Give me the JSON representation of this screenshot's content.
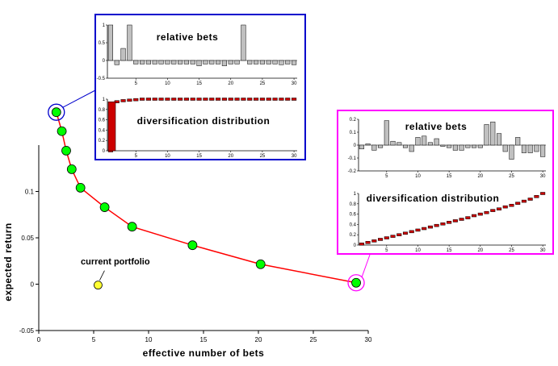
{
  "chart_data": [
    {
      "id": "main",
      "type": "line",
      "xlabel": "effective number of bets",
      "ylabel": "expected return",
      "xlim": [
        0,
        30
      ],
      "ylim": [
        -0.05,
        0.15
      ],
      "x_ticks": [
        0,
        5,
        10,
        15,
        20,
        25,
        30
      ],
      "y_ticks": [
        -0.05,
        0,
        0.05,
        0.1
      ],
      "x_tick_labels": [
        "0",
        "5",
        "10",
        "15",
        "20",
        "25",
        "30"
      ],
      "y_tick_labels": [
        "-0.05",
        "0",
        "0.05",
        "0.1"
      ],
      "frontier": {
        "x": [
          1.6,
          2.1,
          2.5,
          3.0,
          3.8,
          6.0,
          8.5,
          14.0,
          20.2,
          28.9
        ],
        "y": [
          0.1855,
          0.165,
          0.144,
          0.124,
          0.104,
          0.083,
          0.062,
          0.042,
          0.0215,
          0.0015
        ],
        "color": "#ff0000",
        "marker_color": "#00ff00"
      },
      "current_portfolio": {
        "x": 5.4,
        "y": -0.001,
        "color": "#ffff33",
        "label": "current portfolio"
      },
      "highlight_colors": [
        "#0000cc",
        "#ff00ff"
      ]
    },
    {
      "id": "inset-left-relative",
      "type": "bar",
      "title": "relative bets",
      "xlim": [
        0,
        30
      ],
      "ylim": [
        -0.5,
        1
      ],
      "x_ticks": [
        5,
        10,
        15,
        20,
        25,
        30
      ],
      "y_ticks": [
        1,
        0.5,
        0,
        -0.5
      ],
      "y_tick_labels": [
        "1",
        "0.5",
        "0",
        "-0.5"
      ],
      "x": [
        1,
        2,
        3,
        4,
        5,
        6,
        7,
        8,
        9,
        10,
        11,
        12,
        13,
        14,
        15,
        16,
        17,
        18,
        19,
        20,
        21,
        22,
        23,
        24,
        25,
        26,
        27,
        28,
        29,
        30
      ],
      "values": [
        1.0,
        -0.12,
        0.34,
        1.0,
        -0.1,
        -0.1,
        -0.1,
        -0.1,
        -0.1,
        -0.1,
        -0.1,
        -0.1,
        -0.1,
        -0.1,
        -0.15,
        -0.1,
        -0.1,
        -0.1,
        -0.15,
        -0.1,
        -0.1,
        1.0,
        -0.1,
        -0.1,
        -0.1,
        -0.1,
        -0.1,
        -0.12,
        -0.1,
        -0.12
      ],
      "color": "#c0c0c0",
      "frame_color": "#0000cc"
    },
    {
      "id": "inset-left-diversification",
      "type": "bar",
      "title": "diversification distribution",
      "xlim": [
        0,
        30
      ],
      "ylim": [
        0,
        1
      ],
      "x_ticks": [
        5,
        10,
        15,
        20,
        25,
        30
      ],
      "y_ticks": [
        1,
        0.8,
        0.6,
        0.4,
        0.2,
        0
      ],
      "y_tick_labels": [
        "1",
        "0.8",
        "0.6",
        "0.4",
        "0.2",
        "0"
      ],
      "x": [
        1,
        2,
        3,
        4,
        5,
        6,
        7,
        8,
        9,
        10,
        11,
        12,
        13,
        14,
        15,
        16,
        17,
        18,
        19,
        20,
        21,
        22,
        23,
        24,
        25,
        26,
        27,
        28,
        29,
        30
      ],
      "values": [
        0.0,
        0.95,
        0.97,
        0.98,
        0.99,
        1.0,
        1.0,
        1.0,
        1.0,
        1.0,
        1.0,
        1.0,
        1.0,
        1.0,
        1.0,
        1.0,
        1.0,
        1.0,
        1.0,
        1.0,
        1.0,
        1.0,
        1.0,
        1.0,
        1.0,
        1.0,
        1.0,
        1.0,
        1.0,
        1.0
      ],
      "big_bar": 0.95,
      "color": "#cc0000"
    },
    {
      "id": "inset-right-relative",
      "type": "bar",
      "title": "relative bets",
      "xlim": [
        0,
        30
      ],
      "ylim": [
        -0.2,
        0.2
      ],
      "x_ticks": [
        5,
        10,
        15,
        20,
        25,
        30
      ],
      "y_ticks": [
        0.2,
        0.1,
        0,
        -0.1,
        -0.2
      ],
      "y_tick_labels": [
        "0.2",
        "0.1",
        "0",
        "-0.1",
        "-0.2"
      ],
      "x": [
        1,
        2,
        3,
        4,
        5,
        6,
        7,
        8,
        9,
        10,
        11,
        12,
        13,
        14,
        15,
        16,
        17,
        18,
        19,
        20,
        21,
        22,
        23,
        24,
        25,
        26,
        27,
        28,
        29,
        30
      ],
      "values": [
        -0.03,
        0.01,
        -0.04,
        -0.02,
        0.19,
        0.03,
        0.02,
        -0.02,
        -0.05,
        0.06,
        0.07,
        0.02,
        0.05,
        -0.01,
        -0.02,
        -0.04,
        -0.04,
        -0.02,
        -0.02,
        -0.02,
        0.16,
        0.18,
        0.09,
        -0.05,
        -0.11,
        0.06,
        -0.06,
        -0.06,
        -0.05,
        -0.09
      ],
      "color": "#c0c0c0",
      "frame_color": "#ff00ff"
    },
    {
      "id": "inset-right-diversification",
      "type": "bar",
      "title": "diversification distribution",
      "xlim": [
        0,
        30
      ],
      "ylim": [
        0,
        1
      ],
      "x_ticks": [
        5,
        10,
        15,
        20,
        25,
        30
      ],
      "y_ticks": [
        1,
        0.8,
        0.6,
        0.4,
        0.2,
        0
      ],
      "y_tick_labels": [
        "1",
        "0.8",
        "0.6",
        "0.4",
        "0.2",
        "0"
      ],
      "x": [
        1,
        2,
        3,
        4,
        5,
        6,
        7,
        8,
        9,
        10,
        11,
        12,
        13,
        14,
        15,
        16,
        17,
        18,
        19,
        20,
        21,
        22,
        23,
        24,
        25,
        26,
        27,
        28,
        29,
        30
      ],
      "values": [
        0.02,
        0.05,
        0.08,
        0.11,
        0.14,
        0.17,
        0.2,
        0.23,
        0.26,
        0.29,
        0.32,
        0.35,
        0.38,
        0.41,
        0.44,
        0.47,
        0.5,
        0.53,
        0.57,
        0.6,
        0.63,
        0.67,
        0.7,
        0.74,
        0.77,
        0.81,
        0.85,
        0.89,
        0.94,
        1.0
      ],
      "color": "#cc0000"
    }
  ]
}
